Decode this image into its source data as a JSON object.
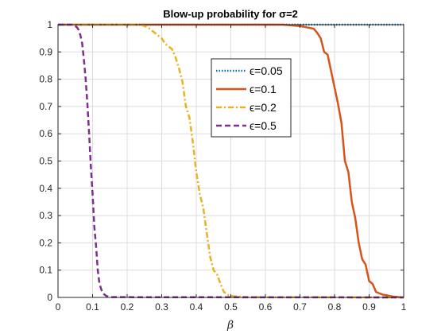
{
  "chart_data": {
    "type": "line",
    "title": "Blow-up probability for σ=2",
    "xlabel": "β",
    "ylabel": "",
    "xlim": [
      0,
      1
    ],
    "ylim": [
      0,
      1
    ],
    "x_ticks": [
      "0",
      "0.1",
      "0.2",
      "0.3",
      "0.4",
      "0.5",
      "0.6",
      "0.7",
      "0.8",
      "0.9",
      "1"
    ],
    "y_ticks": [
      "0",
      "0.1",
      "0.2",
      "0.3",
      "0.4",
      "0.5",
      "0.6",
      "0.7",
      "0.8",
      "0.9",
      "1"
    ],
    "grid": true,
    "legend_position": "top-center",
    "series": [
      {
        "name": "ϵ=0.05",
        "color": "#0072BD",
        "style": "dotted",
        "x": [
          0,
          0.2,
          0.4,
          0.6,
          0.8,
          1.0
        ],
        "y": [
          1,
          1,
          1,
          1,
          1,
          1
        ]
      },
      {
        "name": "ϵ=0.1",
        "color": "#D95319",
        "style": "solid",
        "x": [
          0,
          0.5,
          0.6,
          0.65,
          0.7,
          0.72,
          0.74,
          0.75,
          0.76,
          0.77,
          0.78,
          0.79,
          0.8,
          0.81,
          0.82,
          0.83,
          0.84,
          0.85,
          0.86,
          0.87,
          0.88,
          0.89,
          0.9,
          0.91,
          0.92,
          0.93,
          0.94,
          0.95,
          0.96,
          0.97,
          0.98,
          0.99,
          1.0
        ],
        "y": [
          1,
          1,
          1,
          1,
          0.995,
          0.99,
          0.985,
          0.97,
          0.95,
          0.9,
          0.89,
          0.83,
          0.77,
          0.71,
          0.64,
          0.5,
          0.46,
          0.35,
          0.29,
          0.2,
          0.14,
          0.12,
          0.06,
          0.05,
          0.02,
          0.015,
          0.01,
          0.008,
          0.005,
          0.003,
          0.002,
          0.001,
          0
        ]
      },
      {
        "name": "ϵ=0.2",
        "color": "#EDB120",
        "style": "dashdot",
        "x": [
          0,
          0.2,
          0.24,
          0.26,
          0.28,
          0.29,
          0.3,
          0.31,
          0.32,
          0.33,
          0.34,
          0.35,
          0.36,
          0.37,
          0.38,
          0.39,
          0.4,
          0.41,
          0.42,
          0.43,
          0.44,
          0.45,
          0.46,
          0.47,
          0.48,
          0.49,
          0.5,
          0.55,
          1.0
        ],
        "y": [
          1,
          1,
          1,
          0.99,
          0.97,
          0.96,
          0.95,
          0.93,
          0.92,
          0.91,
          0.88,
          0.84,
          0.79,
          0.7,
          0.66,
          0.57,
          0.46,
          0.38,
          0.33,
          0.24,
          0.15,
          0.1,
          0.085,
          0.05,
          0.02,
          0.01,
          0.005,
          0.001,
          0
        ]
      },
      {
        "name": "ϵ=0.5",
        "color": "#7E2F8E",
        "style": "dashed",
        "x": [
          0,
          0.03,
          0.04,
          0.05,
          0.055,
          0.06,
          0.065,
          0.07,
          0.075,
          0.08,
          0.085,
          0.09,
          0.095,
          0.1,
          0.105,
          0.11,
          0.115,
          0.12,
          0.125,
          0.13,
          0.14,
          0.15,
          1.0
        ],
        "y": [
          1,
          1,
          1,
          0.995,
          0.99,
          0.98,
          0.96,
          0.93,
          0.87,
          0.8,
          0.71,
          0.6,
          0.48,
          0.38,
          0.26,
          0.19,
          0.1,
          0.05,
          0.03,
          0.015,
          0.005,
          0.001,
          0
        ]
      }
    ]
  }
}
